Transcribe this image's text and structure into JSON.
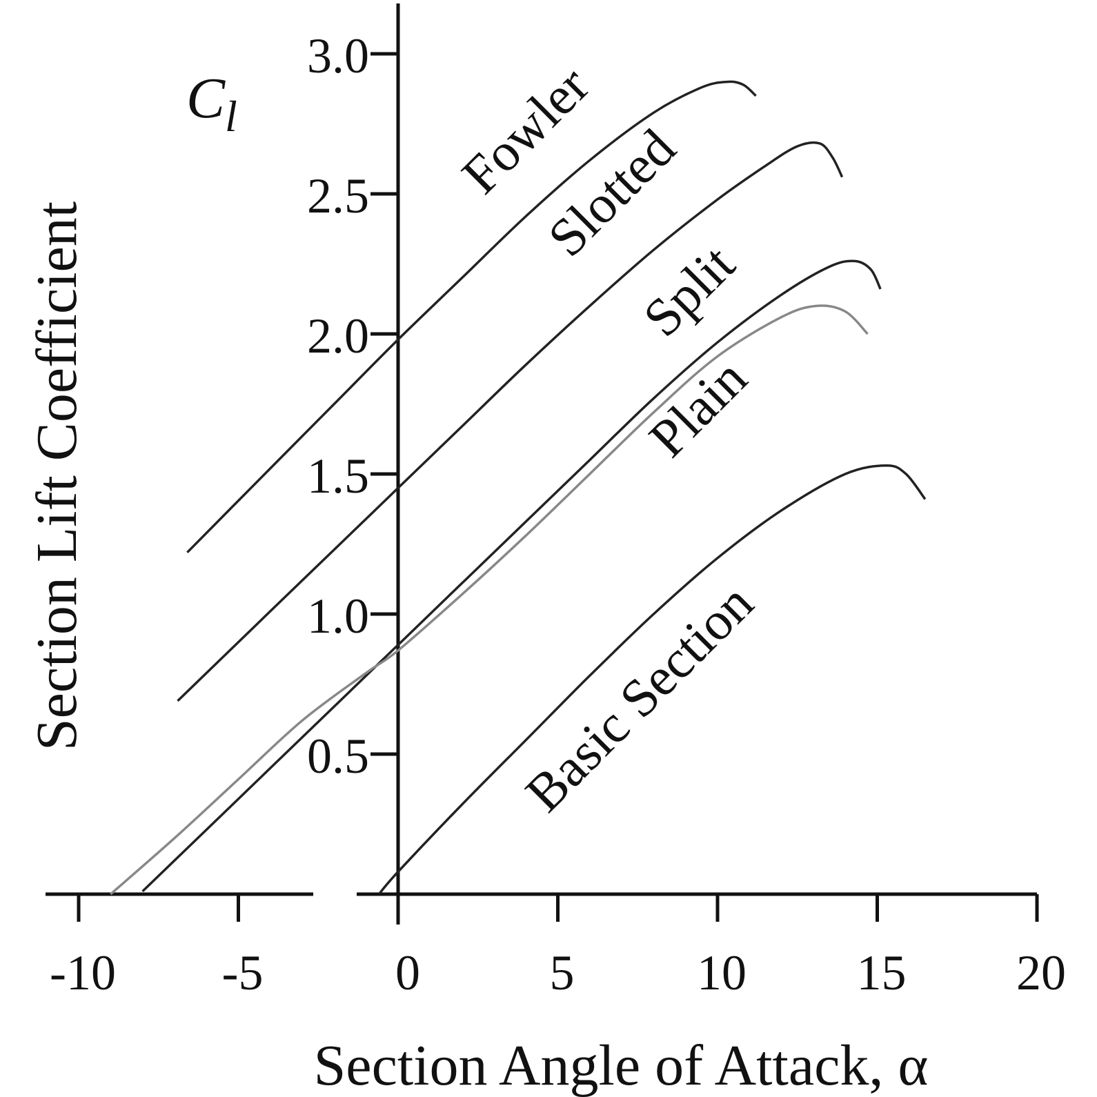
{
  "chart_data": {
    "type": "line",
    "xlabel": "Section Angle of Attack, α",
    "ylabel": "Section Lift Coefficient",
    "y_symbol": {
      "main": "C",
      "subscript": "l"
    },
    "xlim": [
      -10,
      20
    ],
    "ylim": [
      0,
      3.0
    ],
    "x_ticks": [
      "-10",
      "-5",
      "0",
      "5",
      "10",
      "15",
      "20"
    ],
    "y_ticks": [
      "0.5",
      "1.0",
      "1.5",
      "2.0",
      "2.5",
      "3.0"
    ],
    "grid": false,
    "legend": "none (series labeled inline along curves)",
    "series": [
      {
        "name": "Fowler",
        "color": "#222222",
        "points": [
          [
            -6.6,
            1.22
          ],
          [
            -4,
            1.52
          ],
          [
            -2,
            1.75
          ],
          [
            0,
            1.98
          ],
          [
            2,
            2.2
          ],
          [
            4,
            2.42
          ],
          [
            6,
            2.62
          ],
          [
            8,
            2.79
          ],
          [
            9.5,
            2.88
          ],
          [
            10.3,
            2.9
          ],
          [
            10.8,
            2.89
          ],
          [
            11.2,
            2.85
          ]
        ]
      },
      {
        "name": "Slotted",
        "color": "#222222",
        "points": [
          [
            -6.9,
            0.69
          ],
          [
            -4,
            1.01
          ],
          [
            -2,
            1.23
          ],
          [
            0,
            1.45
          ],
          [
            2,
            1.67
          ],
          [
            4,
            1.89
          ],
          [
            6,
            2.1
          ],
          [
            8,
            2.3
          ],
          [
            10,
            2.48
          ],
          [
            11.5,
            2.6
          ],
          [
            12.5,
            2.67
          ],
          [
            13.2,
            2.68
          ],
          [
            13.6,
            2.63
          ],
          [
            13.9,
            2.56
          ]
        ]
      },
      {
        "name": "Split",
        "color": "#222222",
        "points": [
          [
            -8,
            0.01
          ],
          [
            -6,
            0.23
          ],
          [
            -4,
            0.45
          ],
          [
            -2,
            0.67
          ],
          [
            0,
            0.89
          ],
          [
            2,
            1.11
          ],
          [
            4,
            1.33
          ],
          [
            6,
            1.55
          ],
          [
            8,
            1.77
          ],
          [
            10,
            1.97
          ],
          [
            12,
            2.14
          ],
          [
            13.5,
            2.24
          ],
          [
            14.3,
            2.26
          ],
          [
            14.8,
            2.23
          ],
          [
            15.1,
            2.16
          ]
        ]
      },
      {
        "name": "Plain",
        "color": "#888888",
        "points": [
          [
            -9,
            0.0
          ],
          [
            -7,
            0.2
          ],
          [
            -5,
            0.41
          ],
          [
            -3,
            0.62
          ],
          [
            -1,
            0.79
          ],
          [
            0,
            0.87
          ],
          [
            2,
            1.07
          ],
          [
            4,
            1.28
          ],
          [
            6,
            1.5
          ],
          [
            8,
            1.72
          ],
          [
            10,
            1.92
          ],
          [
            12,
            2.06
          ],
          [
            13.1,
            2.1
          ],
          [
            14,
            2.08
          ],
          [
            14.7,
            2.0
          ]
        ]
      },
      {
        "name": "Basic Section",
        "color": "#222222",
        "points": [
          [
            -0.6,
            0.0
          ],
          [
            0,
            0.08
          ],
          [
            2,
            0.32
          ],
          [
            4,
            0.55
          ],
          [
            6,
            0.78
          ],
          [
            8,
            1.0
          ],
          [
            10,
            1.2
          ],
          [
            12,
            1.37
          ],
          [
            14,
            1.5
          ],
          [
            15.3,
            1.53
          ],
          [
            15.9,
            1.5
          ],
          [
            16.5,
            1.41
          ]
        ]
      }
    ]
  }
}
